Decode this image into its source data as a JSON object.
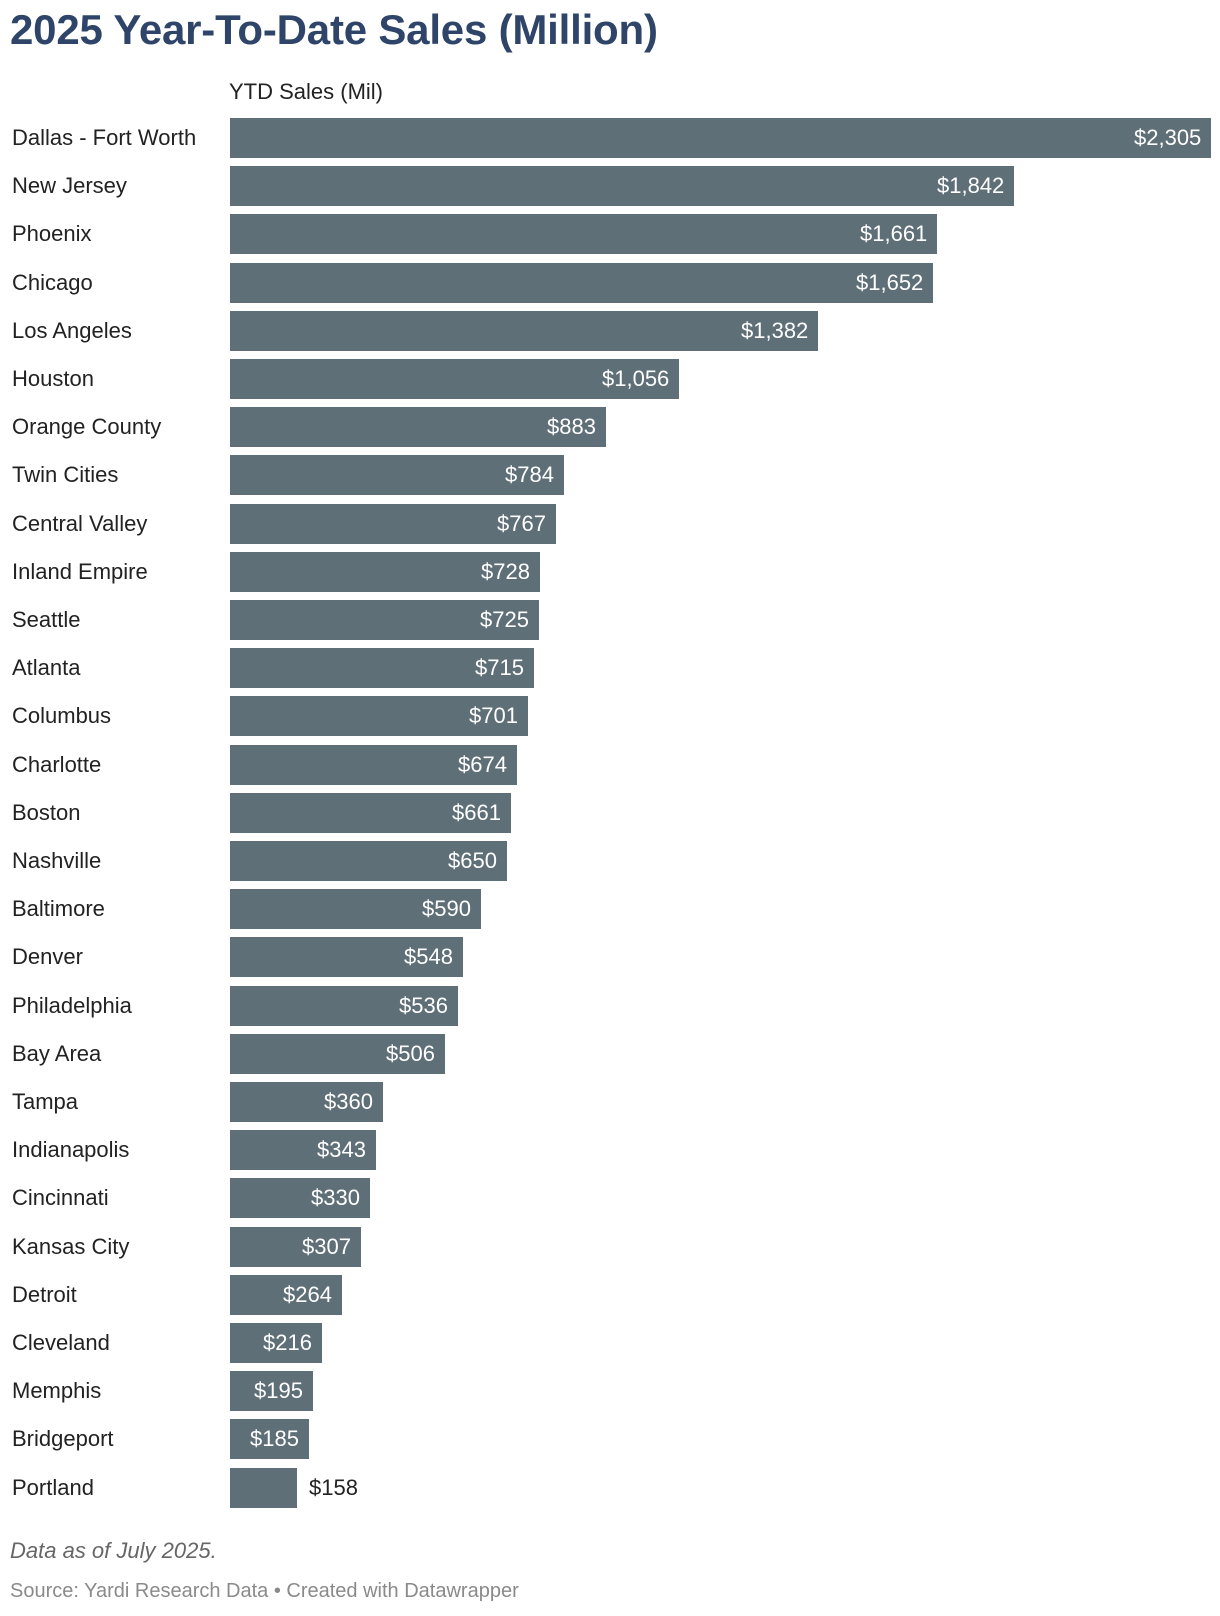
{
  "title": "2025 Year-To-Date Sales (Million)",
  "column_header": "YTD Sales (Mil)",
  "notes": "Data as of July 2025.",
  "footer": "Source: Yardi Research Data • Created with Datawrapper",
  "colors": {
    "title": "#2e4468",
    "bar": "#5e6f78",
    "label_inside": "#ffffff",
    "label_outside": "#222222"
  },
  "chart_data": {
    "type": "bar",
    "orientation": "horizontal",
    "title": "2025 Year-To-Date Sales (Million)",
    "xlabel": "YTD Sales (Mil)",
    "ylabel": "",
    "xlim": [
      0,
      2305
    ],
    "grid": false,
    "categories": [
      "Dallas - Fort Worth",
      "New Jersey",
      "Phoenix",
      "Chicago",
      "Los Angeles",
      "Houston",
      "Orange County",
      "Twin Cities",
      "Central Valley",
      "Inland Empire",
      "Seattle",
      "Atlanta",
      "Columbus",
      "Charlotte",
      "Boston",
      "Nashville",
      "Baltimore",
      "Denver",
      "Philadelphia",
      "Bay Area",
      "Tampa",
      "Indianapolis",
      "Cincinnati",
      "Kansas City",
      "Detroit",
      "Cleveland",
      "Memphis",
      "Bridgeport",
      "Portland"
    ],
    "values": [
      2305,
      1842,
      1661,
      1652,
      1382,
      1056,
      883,
      784,
      767,
      728,
      725,
      715,
      701,
      674,
      661,
      650,
      590,
      548,
      536,
      506,
      360,
      343,
      330,
      307,
      264,
      216,
      195,
      185,
      158
    ],
    "value_labels": [
      "$2,305",
      "$1,842",
      "$1,661",
      "$1,652",
      "$1,382",
      "$1,056",
      "$883",
      "$784",
      "$767",
      "$728",
      "$725",
      "$715",
      "$701",
      "$674",
      "$661",
      "$650",
      "$590",
      "$548",
      "$536",
      "$506",
      "$360",
      "$343",
      "$330",
      "$307",
      "$264",
      "$216",
      "$195",
      "$185",
      "$158"
    ]
  }
}
